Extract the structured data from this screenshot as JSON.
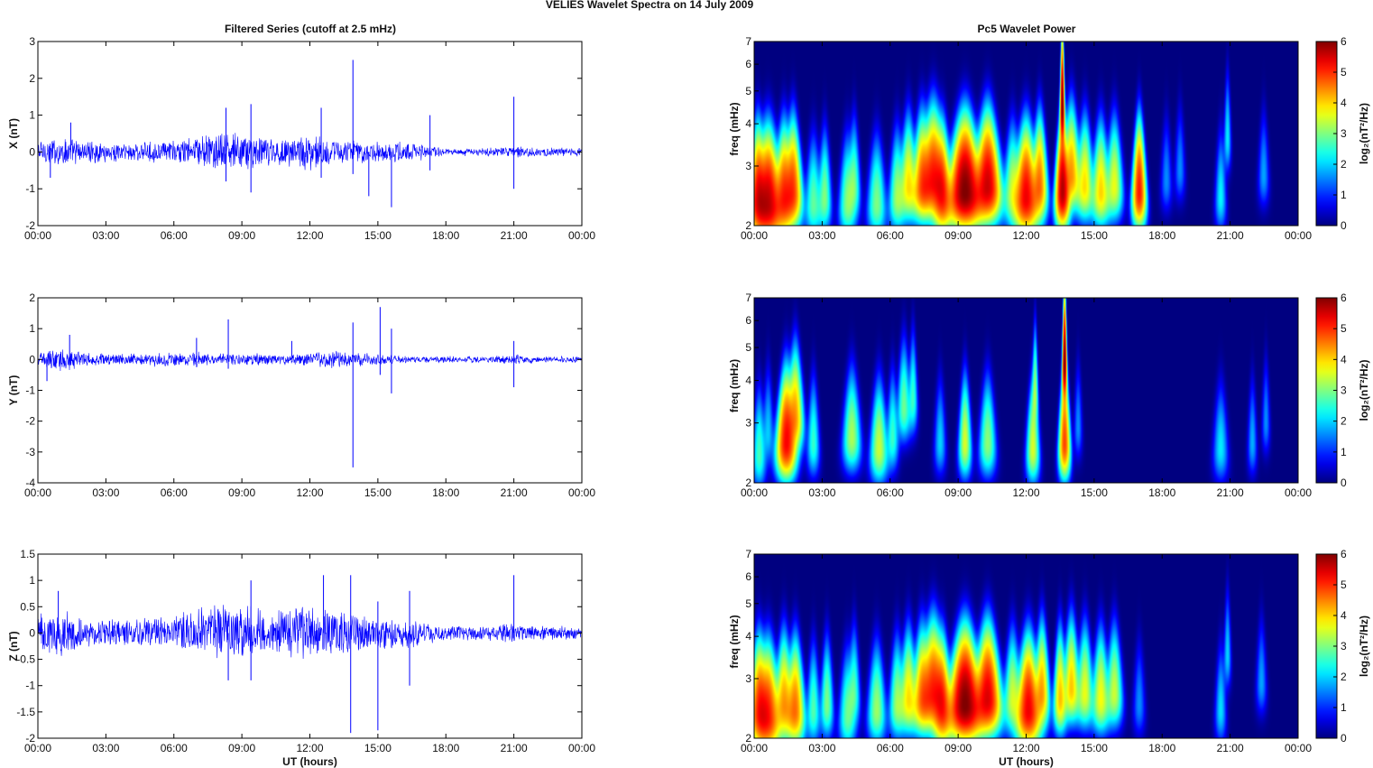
{
  "figure": {
    "title": "VELIES Wavelet Spectra on 14 July      2009",
    "left_title": "Filtered Series (cutoff at 2.5 mHz)",
    "right_title": "Pc5 Wavelet Power",
    "xlabel": "UT (hours)",
    "spec_ylabel": "freq (mHz)",
    "cbar_label": "log₂(nT²/Hz)"
  },
  "chart_data": [
    {
      "type": "line",
      "title": "Filtered Series (cutoff at 2.5 mHz)",
      "xlabel": "",
      "ylabel": "X (nT)",
      "x_ticks": [
        "00:00",
        "03:00",
        "06:00",
        "09:00",
        "12:00",
        "15:00",
        "18:00",
        "21:00",
        "00:00"
      ],
      "y_ticks": [
        "3",
        "2",
        "1",
        "0",
        "-1",
        "-2"
      ],
      "ylim": [
        -2,
        3
      ],
      "xlim_hours": [
        0,
        24
      ],
      "grid": false,
      "color": "#0000ff",
      "series": [
        {
          "envelope_hours": [
            0,
            1,
            2,
            3,
            4,
            5,
            6,
            7,
            8,
            9,
            10,
            11,
            12,
            13,
            14,
            15,
            16,
            17,
            18,
            19,
            20,
            21,
            22,
            23,
            24
          ],
          "envelope_amplitude_nT": [
            0.4,
            0.45,
            0.35,
            0.3,
            0.28,
            0.3,
            0.35,
            0.5,
            0.55,
            0.6,
            0.45,
            0.45,
            0.55,
            0.4,
            0.35,
            0.3,
            0.3,
            0.25,
            0.12,
            0.12,
            0.12,
            0.18,
            0.12,
            0.12,
            0.12
          ],
          "spikes": [
            [
              0.55,
              -0.7
            ],
            [
              1.45,
              0.8
            ],
            [
              8.3,
              1.2
            ],
            [
              8.3,
              -0.8
            ],
            [
              9.4,
              1.3
            ],
            [
              9.4,
              -1.1
            ],
            [
              12.5,
              1.2
            ],
            [
              12.5,
              -0.7
            ],
            [
              13.9,
              2.5
            ],
            [
              13.9,
              -0.6
            ],
            [
              14.6,
              -1.2
            ],
            [
              15.6,
              -1.5
            ],
            [
              17.3,
              1.0
            ],
            [
              17.3,
              -0.5
            ],
            [
              21.0,
              1.5
            ],
            [
              21.0,
              -1.0
            ]
          ]
        }
      ]
    },
    {
      "type": "line",
      "xlabel": "",
      "ylabel": "Y (nT)",
      "x_ticks": [
        "00:00",
        "03:00",
        "06:00",
        "09:00",
        "12:00",
        "15:00",
        "18:00",
        "21:00",
        "00:00"
      ],
      "y_ticks": [
        "2",
        "1",
        "0",
        "-1",
        "-2",
        "-3",
        "-4"
      ],
      "ylim": [
        -4,
        2
      ],
      "xlim_hours": [
        0,
        24
      ],
      "grid": false,
      "color": "#0000ff",
      "series": [
        {
          "envelope_hours": [
            0,
            1,
            2,
            3,
            4,
            5,
            6,
            7,
            8,
            9,
            10,
            11,
            12,
            13,
            14,
            15,
            16,
            17,
            18,
            19,
            20,
            21,
            22,
            23,
            24
          ],
          "envelope_amplitude_nT": [
            0.25,
            0.45,
            0.3,
            0.2,
            0.2,
            0.25,
            0.25,
            0.3,
            0.2,
            0.22,
            0.2,
            0.2,
            0.25,
            0.3,
            0.25,
            0.2,
            0.15,
            0.12,
            0.12,
            0.12,
            0.12,
            0.18,
            0.12,
            0.12,
            0.12
          ],
          "spikes": [
            [
              0.4,
              -0.7
            ],
            [
              1.4,
              0.8
            ],
            [
              7.0,
              0.7
            ],
            [
              8.4,
              1.3
            ],
            [
              8.4,
              -0.3
            ],
            [
              11.2,
              0.6
            ],
            [
              13.9,
              1.2
            ],
            [
              13.9,
              -3.5
            ],
            [
              15.1,
              1.7
            ],
            [
              15.1,
              -0.5
            ],
            [
              15.6,
              1.0
            ],
            [
              15.6,
              -1.1
            ],
            [
              21.0,
              0.6
            ],
            [
              21.0,
              -0.9
            ]
          ]
        }
      ]
    },
    {
      "type": "line",
      "xlabel": "UT (hours)",
      "ylabel": "Z (nT)",
      "x_ticks": [
        "00:00",
        "03:00",
        "06:00",
        "09:00",
        "12:00",
        "15:00",
        "18:00",
        "21:00",
        "00:00"
      ],
      "y_ticks": [
        "1.5",
        "1",
        "0.5",
        "0",
        "-0.5",
        "-1",
        "-1.5",
        "-2"
      ],
      "ylim": [
        -2,
        1.5
      ],
      "xlim_hours": [
        0,
        24
      ],
      "grid": false,
      "color": "#0000ff",
      "series": [
        {
          "envelope_hours": [
            0,
            1,
            2,
            3,
            4,
            5,
            6,
            7,
            8,
            9,
            10,
            11,
            12,
            13,
            14,
            15,
            16,
            17,
            18,
            19,
            20,
            21,
            22,
            23,
            24
          ],
          "envelope_amplitude_nT": [
            0.4,
            0.5,
            0.35,
            0.3,
            0.3,
            0.3,
            0.35,
            0.55,
            0.6,
            0.65,
            0.5,
            0.5,
            0.6,
            0.5,
            0.4,
            0.35,
            0.35,
            0.25,
            0.15,
            0.15,
            0.15,
            0.2,
            0.15,
            0.15,
            0.15
          ],
          "spikes": [
            [
              0.9,
              0.8
            ],
            [
              8.4,
              -0.9
            ],
            [
              9.4,
              1.0
            ],
            [
              9.4,
              -0.9
            ],
            [
              12.6,
              1.1
            ],
            [
              13.8,
              -1.9
            ],
            [
              13.8,
              1.1
            ],
            [
              15.0,
              -1.85
            ],
            [
              15.0,
              0.6
            ],
            [
              16.4,
              0.8
            ],
            [
              16.4,
              -1.0
            ],
            [
              21.0,
              1.1
            ]
          ]
        }
      ]
    },
    {
      "type": "heatmap",
      "title": "Pc5 Wavelet Power",
      "xlabel": "",
      "ylabel": "freq (mHz)",
      "x_ticks": [
        "00:00",
        "03:00",
        "06:00",
        "09:00",
        "12:00",
        "15:00",
        "18:00",
        "21:00",
        "00:00"
      ],
      "y_ticks": [
        "7",
        "6",
        "5",
        "4",
        "3",
        "2"
      ],
      "ylim_mHz": [
        2,
        7
      ],
      "log_y": true,
      "colorbar": {
        "label": "log₂(nT²/Hz)",
        "range": [
          0,
          6
        ],
        "ticks": [
          "6",
          "5",
          "4",
          "3",
          "2",
          "1",
          "0"
        ],
        "colormap": "jet"
      },
      "events": [
        {
          "t": 0.15,
          "f": 2.4,
          "w": 0.18,
          "v": 5.0
        },
        {
          "t": 0.6,
          "f": 2.3,
          "w": 0.28,
          "v": 5.6
        },
        {
          "t": 1.3,
          "f": 2.4,
          "w": 0.2,
          "v": 4.8
        },
        {
          "t": 1.7,
          "f": 2.5,
          "w": 0.2,
          "v": 4.8
        },
        {
          "t": 2.6,
          "f": 2.3,
          "w": 0.18,
          "v": 2.6
        },
        {
          "t": 3.1,
          "f": 2.4,
          "w": 0.15,
          "v": 2.8
        },
        {
          "t": 4.1,
          "f": 2.3,
          "w": 0.18,
          "v": 2.8
        },
        {
          "t": 4.4,
          "f": 2.6,
          "w": 0.15,
          "v": 2.6
        },
        {
          "t": 5.4,
          "f": 2.3,
          "w": 0.2,
          "v": 2.8
        },
        {
          "t": 6.3,
          "f": 2.4,
          "w": 0.18,
          "v": 3.0
        },
        {
          "t": 6.8,
          "f": 2.6,
          "w": 0.2,
          "v": 3.8
        },
        {
          "t": 7.4,
          "f": 2.6,
          "w": 0.22,
          "v": 4.5
        },
        {
          "t": 7.9,
          "f": 2.7,
          "w": 0.3,
          "v": 5.1
        },
        {
          "t": 8.3,
          "f": 2.4,
          "w": 0.2,
          "v": 4.7
        },
        {
          "t": 9.3,
          "f": 2.5,
          "w": 0.35,
          "v": 6.0
        },
        {
          "t": 10.3,
          "f": 2.6,
          "w": 0.3,
          "v": 5.5
        },
        {
          "t": 11.4,
          "f": 2.5,
          "w": 0.2,
          "v": 3.2
        },
        {
          "t": 12.0,
          "f": 2.4,
          "w": 0.25,
          "v": 5.3
        },
        {
          "t": 12.6,
          "f": 2.6,
          "w": 0.18,
          "v": 4.5
        },
        {
          "t": 13.6,
          "f": 2.5,
          "w": 0.15,
          "v": 5.6
        },
        {
          "t": 14.0,
          "f": 2.8,
          "w": 0.22,
          "v": 4.3
        },
        {
          "t": 14.6,
          "f": 2.6,
          "w": 0.2,
          "v": 3.8
        },
        {
          "t": 15.3,
          "f": 2.5,
          "w": 0.2,
          "v": 3.9
        },
        {
          "t": 15.9,
          "f": 2.6,
          "w": 0.2,
          "v": 3.5
        },
        {
          "t": 17.0,
          "f": 2.5,
          "w": 0.15,
          "v": 5.1
        },
        {
          "t": 18.2,
          "f": 2.7,
          "w": 0.15,
          "v": 1.0
        },
        {
          "t": 18.8,
          "f": 2.9,
          "w": 0.15,
          "v": 1.0
        },
        {
          "t": 20.6,
          "f": 2.4,
          "w": 0.13,
          "v": 1.9
        },
        {
          "t": 20.9,
          "f": 3.6,
          "w": 0.12,
          "v": 1.8
        },
        {
          "t": 22.5,
          "f": 2.8,
          "w": 0.15,
          "v": 1.2
        },
        {
          "t": 13.6,
          "f": 4.5,
          "w": 0.08,
          "v": 6.0
        }
      ]
    },
    {
      "type": "heatmap",
      "xlabel": "",
      "ylabel": "freq (mHz)",
      "x_ticks": [
        "00:00",
        "03:00",
        "06:00",
        "09:00",
        "12:00",
        "15:00",
        "18:00",
        "21:00",
        "00:00"
      ],
      "y_ticks": [
        "7",
        "6",
        "5",
        "4",
        "3",
        "2"
      ],
      "ylim_mHz": [
        2,
        7
      ],
      "log_y": true,
      "colorbar": {
        "label": "log₂(nT²/Hz)",
        "range": [
          0,
          6
        ],
        "ticks": [
          "6",
          "5",
          "4",
          "3",
          "2",
          "1",
          "0"
        ],
        "colormap": "jet"
      },
      "events": [
        {
          "t": 0.2,
          "f": 2.4,
          "w": 0.15,
          "v": 2.4
        },
        {
          "t": 0.6,
          "f": 2.8,
          "w": 0.15,
          "v": 1.5
        },
        {
          "t": 1.4,
          "f": 2.6,
          "w": 0.22,
          "v": 5.2
        },
        {
          "t": 1.8,
          "f": 3.1,
          "w": 0.22,
          "v": 4.2
        },
        {
          "t": 2.6,
          "f": 2.6,
          "w": 0.15,
          "v": 2.3
        },
        {
          "t": 4.3,
          "f": 2.7,
          "w": 0.22,
          "v": 3.1
        },
        {
          "t": 5.5,
          "f": 2.5,
          "w": 0.2,
          "v": 3.3
        },
        {
          "t": 6.1,
          "f": 2.7,
          "w": 0.15,
          "v": 2.3
        },
        {
          "t": 6.6,
          "f": 3.3,
          "w": 0.2,
          "v": 2.7
        },
        {
          "t": 7.0,
          "f": 3.5,
          "w": 0.15,
          "v": 2.3
        },
        {
          "t": 8.2,
          "f": 2.6,
          "w": 0.15,
          "v": 1.6
        },
        {
          "t": 9.3,
          "f": 2.6,
          "w": 0.15,
          "v": 3.4
        },
        {
          "t": 10.3,
          "f": 2.6,
          "w": 0.2,
          "v": 2.9
        },
        {
          "t": 12.3,
          "f": 2.5,
          "w": 0.15,
          "v": 3.4
        },
        {
          "t": 12.4,
          "f": 3.7,
          "w": 0.1,
          "v": 2.8
        },
        {
          "t": 13.7,
          "f": 2.6,
          "w": 0.13,
          "v": 4.8
        },
        {
          "t": 14.3,
          "f": 2.9,
          "w": 0.12,
          "v": 1.0
        },
        {
          "t": 20.6,
          "f": 2.5,
          "w": 0.18,
          "v": 1.8
        },
        {
          "t": 22.0,
          "f": 2.6,
          "w": 0.12,
          "v": 1.3
        },
        {
          "t": 22.6,
          "f": 3.0,
          "w": 0.12,
          "v": 1.0
        },
        {
          "t": 13.7,
          "f": 4.5,
          "w": 0.08,
          "v": 6.0
        }
      ]
    },
    {
      "type": "heatmap",
      "xlabel": "UT (hours)",
      "ylabel": "freq (mHz)",
      "x_ticks": [
        "00:00",
        "03:00",
        "06:00",
        "09:00",
        "12:00",
        "15:00",
        "18:00",
        "21:00",
        "00:00"
      ],
      "y_ticks": [
        "7",
        "6",
        "5",
        "4",
        "3",
        "2"
      ],
      "ylim_mHz": [
        2,
        7
      ],
      "log_y": true,
      "colorbar": {
        "label": "log₂(nT²/Hz)",
        "range": [
          0,
          6
        ],
        "ticks": [
          "6",
          "5",
          "4",
          "3",
          "2",
          "1",
          "0"
        ],
        "colormap": "jet"
      },
      "events": [
        {
          "t": 0.2,
          "f": 2.4,
          "w": 0.2,
          "v": 4.8
        },
        {
          "t": 0.6,
          "f": 2.3,
          "w": 0.25,
          "v": 5.0
        },
        {
          "t": 1.3,
          "f": 2.5,
          "w": 0.2,
          "v": 4.2
        },
        {
          "t": 1.8,
          "f": 2.4,
          "w": 0.2,
          "v": 4.5
        },
        {
          "t": 2.6,
          "f": 2.4,
          "w": 0.15,
          "v": 2.5
        },
        {
          "t": 3.2,
          "f": 2.5,
          "w": 0.15,
          "v": 2.8
        },
        {
          "t": 4.1,
          "f": 2.3,
          "w": 0.18,
          "v": 2.6
        },
        {
          "t": 4.4,
          "f": 2.7,
          "w": 0.15,
          "v": 2.4
        },
        {
          "t": 5.4,
          "f": 2.4,
          "w": 0.2,
          "v": 3.0
        },
        {
          "t": 6.3,
          "f": 2.5,
          "w": 0.18,
          "v": 3.0
        },
        {
          "t": 6.8,
          "f": 2.6,
          "w": 0.2,
          "v": 3.8
        },
        {
          "t": 7.4,
          "f": 2.6,
          "w": 0.22,
          "v": 4.3
        },
        {
          "t": 7.9,
          "f": 2.7,
          "w": 0.3,
          "v": 5.0
        },
        {
          "t": 8.3,
          "f": 2.4,
          "w": 0.2,
          "v": 4.7
        },
        {
          "t": 9.3,
          "f": 2.5,
          "w": 0.35,
          "v": 6.0
        },
        {
          "t": 10.3,
          "f": 2.6,
          "w": 0.3,
          "v": 5.4
        },
        {
          "t": 11.4,
          "f": 2.6,
          "w": 0.2,
          "v": 3.3
        },
        {
          "t": 12.1,
          "f": 2.4,
          "w": 0.25,
          "v": 5.3
        },
        {
          "t": 12.7,
          "f": 2.7,
          "w": 0.18,
          "v": 4.2
        },
        {
          "t": 13.5,
          "f": 2.6,
          "w": 0.15,
          "v": 4.0
        },
        {
          "t": 14.0,
          "f": 2.8,
          "w": 0.2,
          "v": 4.0
        },
        {
          "t": 14.6,
          "f": 2.7,
          "w": 0.2,
          "v": 3.5
        },
        {
          "t": 15.3,
          "f": 2.6,
          "w": 0.2,
          "v": 3.6
        },
        {
          "t": 15.9,
          "f": 2.7,
          "w": 0.2,
          "v": 3.3
        },
        {
          "t": 17.0,
          "f": 2.5,
          "w": 0.15,
          "v": 1.0
        },
        {
          "t": 20.6,
          "f": 2.4,
          "w": 0.13,
          "v": 1.7
        },
        {
          "t": 20.9,
          "f": 3.5,
          "w": 0.12,
          "v": 1.6
        },
        {
          "t": 22.4,
          "f": 2.9,
          "w": 0.15,
          "v": 1.2
        }
      ]
    }
  ]
}
